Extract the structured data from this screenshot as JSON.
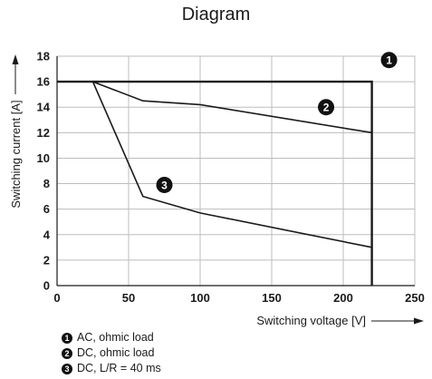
{
  "chart_data": {
    "type": "line",
    "title": "Diagram",
    "xlabel": "Switching voltage [V]",
    "ylabel": "Switching current [A]",
    "xlim": [
      0,
      250
    ],
    "ylim": [
      0,
      18
    ],
    "xticks": [
      "0",
      "50",
      "100",
      "150",
      "200",
      "250"
    ],
    "yticks": [
      "0",
      "2",
      "4",
      "6",
      "8",
      "10",
      "12",
      "14",
      "16",
      "18"
    ],
    "grid": true,
    "series": [
      {
        "marker": "1",
        "name": "AC, ohmic load",
        "x": [
          0,
          220,
          220
        ],
        "y": [
          16,
          16,
          0
        ]
      },
      {
        "marker": "2",
        "name": "DC, ohmic load",
        "x": [
          25,
          60,
          100,
          220
        ],
        "y": [
          16,
          14.5,
          14.2,
          12
        ]
      },
      {
        "marker": "3",
        "name": "DC, L/R = 40 ms",
        "x": [
          25,
          60,
          100,
          220
        ],
        "y": [
          16,
          7,
          5.7,
          3
        ]
      }
    ],
    "line_color": "#1a1a1a",
    "grid_color": "#bdbdbd"
  }
}
